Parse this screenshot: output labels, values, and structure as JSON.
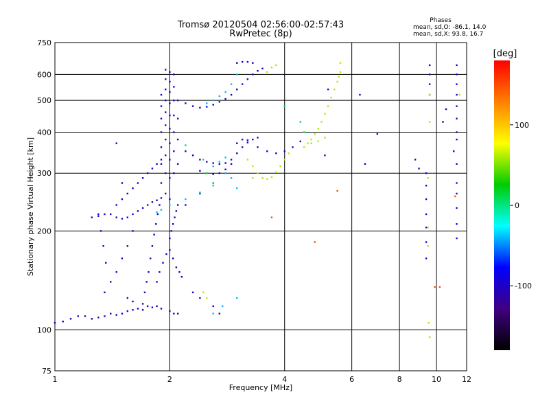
{
  "chart_data": {
    "type": "scatter",
    "title": "Tromsø 20120504 02:56:00-02:57:43",
    "subtitle": "RwPretec (8p)",
    "xlabel": "Frequency [MHz]",
    "ylabel": "Stationary phase Virtual Height [km]",
    "x_scale": "log",
    "y_scale": "log",
    "xlim": [
      1,
      12
    ],
    "ylim": [
      75,
      750
    ],
    "x_ticks": [
      1,
      2,
      4,
      6,
      8,
      10,
      12
    ],
    "y_ticks": [
      75,
      100,
      200,
      300,
      400,
      500,
      600,
      750
    ],
    "phases_box": {
      "heading": "Phases",
      "line1": "mean, sd,O:  -86.1, 14.0",
      "line2": "mean, sd,X:  93.8, 16.7"
    },
    "colorbar": {
      "label": "[deg]",
      "range": [
        -180,
        180
      ],
      "ticks": [
        100,
        0,
        -100
      ],
      "colors": [
        "#ff0000",
        "#ff8000",
        "#ffff00",
        "#00cc00",
        "#00ffff",
        "#0000ff",
        "#400080",
        "#000000"
      ]
    },
    "series": [
      {
        "phase": -100,
        "points": [
          [
            1.0,
            105
          ],
          [
            1.05,
            106
          ],
          [
            1.1,
            108
          ],
          [
            1.15,
            110
          ],
          [
            1.2,
            110
          ],
          [
            1.25,
            108
          ],
          [
            1.3,
            109
          ],
          [
            1.35,
            110
          ],
          [
            1.4,
            112
          ],
          [
            1.45,
            111
          ],
          [
            1.5,
            112
          ],
          [
            1.55,
            114
          ],
          [
            1.6,
            115
          ],
          [
            1.65,
            116
          ],
          [
            1.7,
            115
          ],
          [
            1.75,
            118
          ],
          [
            1.8,
            117
          ],
          [
            1.85,
            118
          ],
          [
            1.9,
            116
          ],
          [
            2.0,
            114
          ],
          [
            2.05,
            112
          ],
          [
            2.1,
            112
          ],
          [
            1.25,
            220
          ],
          [
            1.3,
            222
          ],
          [
            1.35,
            225
          ],
          [
            1.4,
            225
          ],
          [
            1.45,
            220
          ],
          [
            1.5,
            218
          ],
          [
            1.55,
            220
          ],
          [
            1.6,
            225
          ],
          [
            1.65,
            230
          ],
          [
            1.7,
            235
          ],
          [
            1.75,
            240
          ],
          [
            1.8,
            245
          ],
          [
            1.85,
            248
          ],
          [
            1.9,
            252
          ],
          [
            1.45,
            240
          ],
          [
            1.5,
            250
          ],
          [
            1.55,
            260
          ],
          [
            1.6,
            270
          ],
          [
            1.65,
            280
          ],
          [
            1.7,
            290
          ],
          [
            1.75,
            300
          ],
          [
            1.8,
            310
          ],
          [
            1.85,
            320
          ],
          [
            1.9,
            330
          ],
          [
            1.35,
            130
          ],
          [
            1.4,
            140
          ],
          [
            1.45,
            150
          ],
          [
            1.5,
            165
          ],
          [
            1.55,
            180
          ],
          [
            1.6,
            200
          ],
          [
            1.3,
            225
          ],
          [
            1.32,
            200
          ],
          [
            1.34,
            180
          ],
          [
            1.36,
            160
          ],
          [
            1.45,
            370
          ],
          [
            1.5,
            280
          ],
          [
            1.55,
            125
          ],
          [
            1.6,
            122
          ],
          [
            1.7,
            120
          ],
          [
            1.72,
            130
          ],
          [
            1.74,
            140
          ],
          [
            1.76,
            150
          ],
          [
            1.78,
            165
          ],
          [
            1.8,
            180
          ],
          [
            1.82,
            195
          ],
          [
            1.84,
            210
          ],
          [
            1.86,
            225
          ],
          [
            1.88,
            240
          ],
          [
            1.9,
            280
          ],
          [
            1.9,
            320
          ],
          [
            1.9,
            360
          ],
          [
            1.9,
            400
          ],
          [
            1.9,
            440
          ],
          [
            1.9,
            480
          ],
          [
            1.9,
            520
          ],
          [
            1.95,
            260
          ],
          [
            1.95,
            300
          ],
          [
            1.95,
            340
          ],
          [
            1.95,
            380
          ],
          [
            1.95,
            420
          ],
          [
            1.95,
            460
          ],
          [
            1.95,
            500
          ],
          [
            1.95,
            540
          ],
          [
            1.95,
            580
          ],
          [
            1.95,
            620
          ],
          [
            2.0,
            250
          ],
          [
            2.0,
            290
          ],
          [
            2.0,
            330
          ],
          [
            2.0,
            370
          ],
          [
            2.0,
            410
          ],
          [
            2.0,
            450
          ],
          [
            2.0,
            490
          ],
          [
            2.0,
            530
          ],
          [
            2.0,
            570
          ],
          [
            2.0,
            610
          ],
          [
            2.05,
            300
          ],
          [
            2.05,
            350
          ],
          [
            2.05,
            400
          ],
          [
            2.05,
            450
          ],
          [
            2.05,
            500
          ],
          [
            2.05,
            550
          ],
          [
            2.05,
            600
          ],
          [
            2.1,
            320
          ],
          [
            2.1,
            380
          ],
          [
            2.1,
            440
          ],
          [
            2.1,
            500
          ],
          [
            1.85,
            140
          ],
          [
            1.88,
            150
          ],
          [
            1.92,
            160
          ],
          [
            1.96,
            170
          ],
          [
            2.0,
            175
          ],
          [
            2.04,
            165
          ],
          [
            2.08,
            155
          ],
          [
            2.12,
            150
          ],
          [
            2.15,
            145
          ],
          [
            2.0,
            190
          ],
          [
            2.02,
            200
          ],
          [
            2.04,
            210
          ],
          [
            2.06,
            220
          ],
          [
            2.08,
            230
          ],
          [
            2.1,
            240
          ],
          [
            2.2,
            490
          ],
          [
            2.3,
            480
          ],
          [
            2.4,
            475
          ],
          [
            2.5,
            478
          ],
          [
            2.6,
            485
          ],
          [
            2.7,
            495
          ],
          [
            2.8,
            505
          ],
          [
            2.9,
            520
          ],
          [
            3.0,
            540
          ],
          [
            3.1,
            560
          ],
          [
            3.2,
            580
          ],
          [
            3.3,
            600
          ],
          [
            3.4,
            615
          ],
          [
            3.5,
            625
          ],
          [
            2.2,
            350
          ],
          [
            2.3,
            340
          ],
          [
            2.4,
            330
          ],
          [
            2.5,
            325
          ],
          [
            2.6,
            322
          ],
          [
            2.7,
            320
          ],
          [
            2.8,
            322
          ],
          [
            2.9,
            330
          ],
          [
            3.0,
            345
          ],
          [
            3.1,
            360
          ],
          [
            3.2,
            372
          ],
          [
            3.3,
            380
          ],
          [
            3.4,
            385
          ],
          [
            2.4,
            305
          ],
          [
            2.5,
            300
          ],
          [
            2.6,
            298
          ],
          [
            2.7,
            300
          ],
          [
            2.8,
            308
          ],
          [
            2.9,
            320
          ],
          [
            3.0,
            370
          ],
          [
            3.1,
            380
          ],
          [
            3.2,
            378
          ],
          [
            3.4,
            360
          ],
          [
            3.6,
            350
          ],
          [
            3.8,
            345
          ],
          [
            4.0,
            350
          ],
          [
            4.2,
            360
          ],
          [
            4.4,
            375
          ],
          [
            3.0,
            650
          ],
          [
            3.1,
            655
          ],
          [
            3.2,
            655
          ],
          [
            3.3,
            650
          ],
          [
            2.3,
            130
          ],
          [
            2.4,
            125
          ],
          [
            2.6,
            118
          ],
          [
            2.7,
            112
          ],
          [
            2.2,
            240
          ],
          [
            2.4,
            260
          ],
          [
            2.6,
            280
          ],
          [
            2.8,
            300
          ],
          [
            5.2,
            540
          ],
          [
            5.1,
            340
          ],
          [
            6.3,
            520
          ],
          [
            6.5,
            320
          ],
          [
            7.0,
            395
          ],
          [
            8.8,
            330
          ],
          [
            9.0,
            310
          ],
          [
            9.4,
            300
          ],
          [
            9.4,
            275
          ],
          [
            9.4,
            250
          ],
          [
            9.4,
            225
          ],
          [
            9.4,
            205
          ],
          [
            9.4,
            185
          ],
          [
            9.4,
            165
          ],
          [
            9.6,
            640
          ],
          [
            9.6,
            600
          ],
          [
            9.6,
            560
          ],
          [
            9.6,
            520
          ],
          [
            11.3,
            640
          ],
          [
            11.3,
            600
          ],
          [
            11.3,
            560
          ],
          [
            11.3,
            520
          ],
          [
            11.3,
            480
          ],
          [
            11.3,
            440
          ],
          [
            11.3,
            400
          ],
          [
            11.3,
            380
          ],
          [
            11.3,
            320
          ],
          [
            11.3,
            280
          ],
          [
            11.3,
            260
          ],
          [
            11.3,
            235
          ],
          [
            11.3,
            210
          ],
          [
            11.3,
            190
          ],
          [
            10.6,
            470
          ],
          [
            10.4,
            430
          ],
          [
            11.1,
            350
          ]
        ]
      },
      {
        "phase": -40,
        "points": [
          [
            1.85,
            228
          ],
          [
            1.9,
            232
          ],
          [
            2.0,
            240
          ],
          [
            2.2,
            250
          ],
          [
            2.4,
            262
          ],
          [
            2.6,
            275
          ],
          [
            2.5,
            490
          ],
          [
            2.6,
            500
          ],
          [
            2.7,
            515
          ],
          [
            2.8,
            530
          ],
          [
            2.9,
            560
          ],
          [
            3.0,
            600
          ],
          [
            2.6,
            315
          ],
          [
            2.7,
            325
          ],
          [
            2.8,
            335
          ],
          [
            2.6,
            112
          ],
          [
            2.75,
            118
          ],
          [
            3.0,
            125
          ],
          [
            2.8,
            300
          ],
          [
            2.9,
            290
          ],
          [
            3.0,
            270
          ]
        ]
      },
      {
        "phase": 10,
        "points": [
          [
            2.45,
            330
          ],
          [
            2.5,
            300
          ],
          [
            2.6,
            280
          ],
          [
            4.0,
            480
          ],
          [
            4.4,
            430
          ],
          [
            4.5,
            400
          ],
          [
            2.2,
            365
          ]
        ]
      },
      {
        "phase": 60,
        "points": [
          [
            3.2,
            330
          ],
          [
            3.3,
            315
          ],
          [
            3.4,
            300
          ],
          [
            3.5,
            290
          ],
          [
            3.6,
            288
          ],
          [
            3.7,
            292
          ],
          [
            3.8,
            302
          ],
          [
            3.9,
            315
          ],
          [
            4.0,
            330
          ],
          [
            4.1,
            345
          ],
          [
            4.5,
            360
          ],
          [
            4.6,
            370
          ],
          [
            4.7,
            380
          ],
          [
            4.8,
            395
          ],
          [
            4.9,
            410
          ],
          [
            5.0,
            430
          ],
          [
            5.1,
            455
          ],
          [
            5.2,
            480
          ],
          [
            5.3,
            510
          ],
          [
            5.4,
            540
          ],
          [
            5.5,
            570
          ],
          [
            5.6,
            610
          ],
          [
            4.7,
            370
          ],
          [
            4.9,
            375
          ],
          [
            5.1,
            385
          ],
          [
            3.6,
            610
          ],
          [
            3.7,
            630
          ],
          [
            3.8,
            640
          ],
          [
            2.45,
            130
          ],
          [
            2.5,
            125
          ],
          [
            9.5,
            290
          ],
          [
            9.5,
            205
          ],
          [
            9.5,
            180
          ],
          [
            9.6,
            520
          ],
          [
            9.6,
            430
          ],
          [
            9.55,
            105
          ],
          [
            11.5,
            520
          ],
          [
            3.3,
            290
          ],
          [
            9.6,
            95
          ],
          [
            5.6,
            650
          ],
          [
            5.55,
            590
          ]
        ]
      },
      {
        "phase": 150,
        "points": [
          [
            4.8,
            185
          ],
          [
            3.7,
            220
          ],
          [
            5.5,
            265
          ],
          [
            9.9,
            135
          ],
          [
            10.2,
            135
          ],
          [
            11.2,
            255
          ]
        ]
      }
    ]
  }
}
